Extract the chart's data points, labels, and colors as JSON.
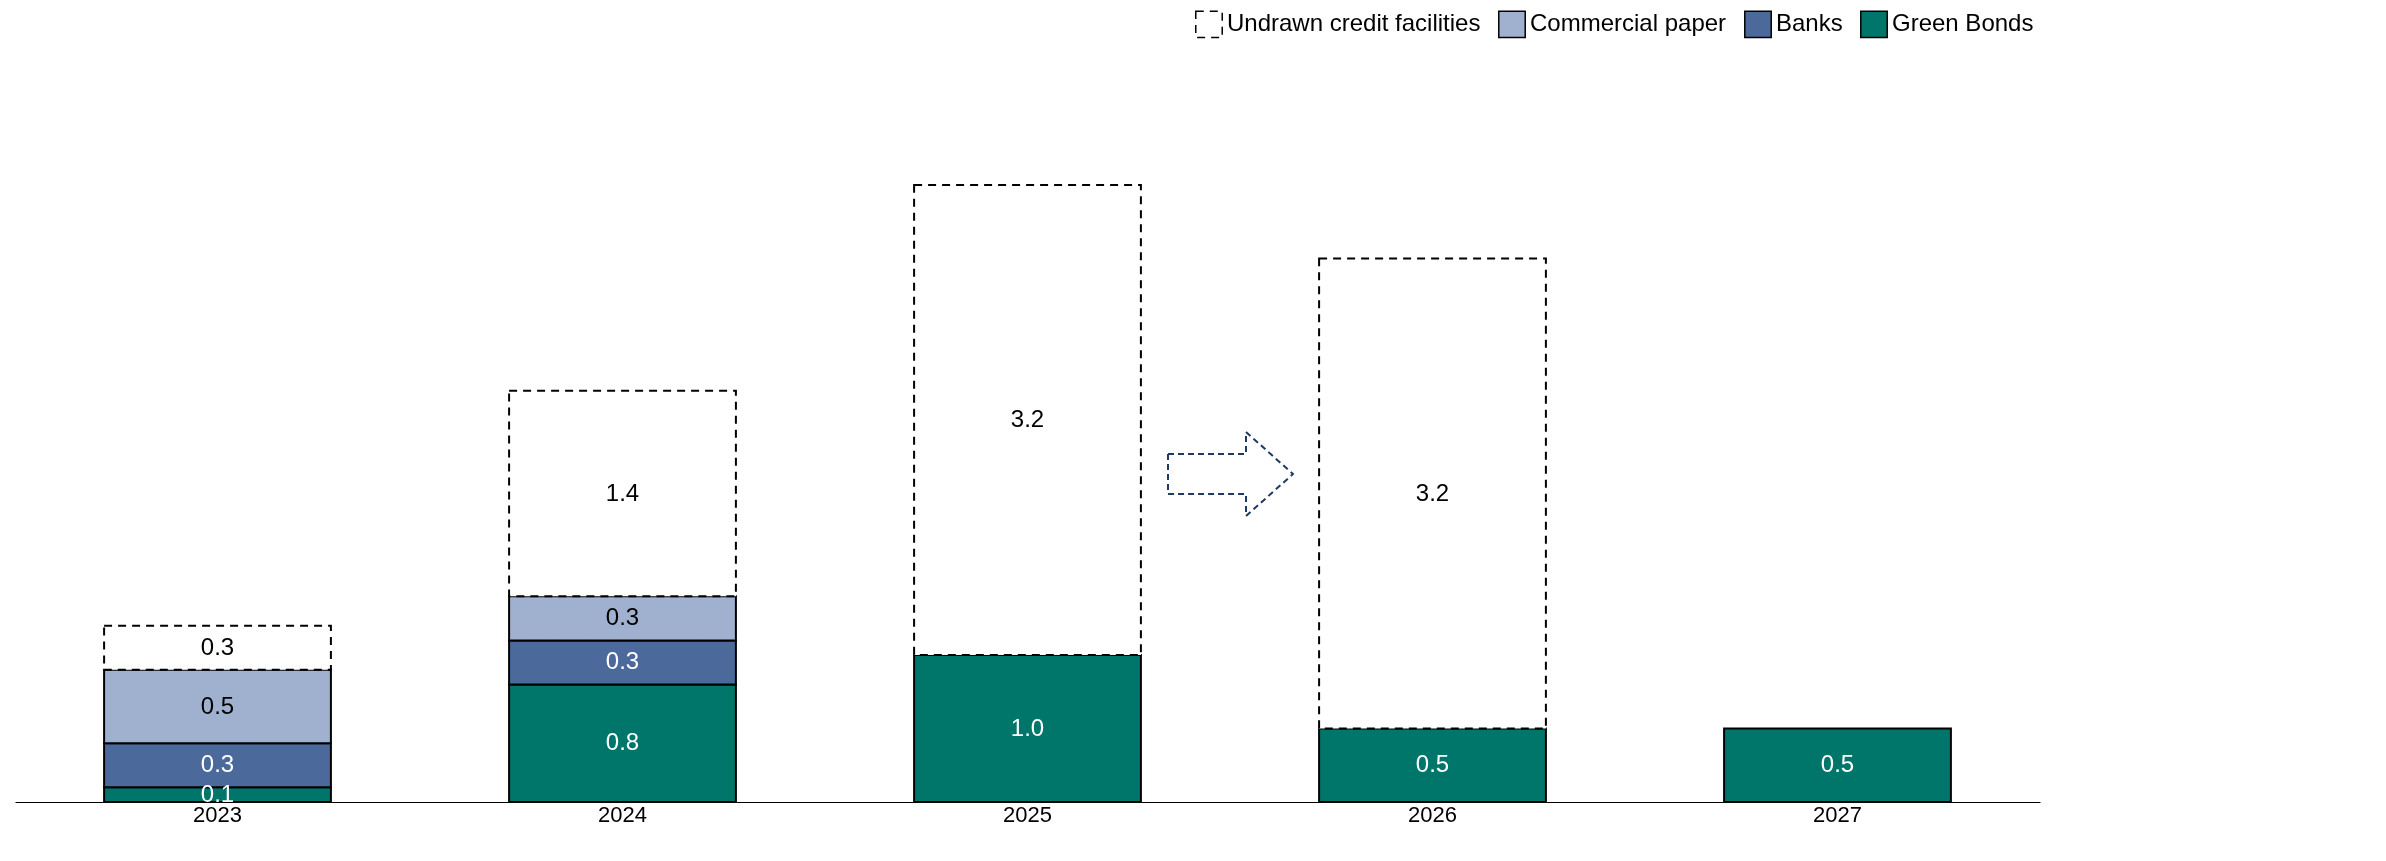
{
  "chart_data": {
    "type": "bar",
    "stacked": true,
    "legend": "top right",
    "grid": false,
    "categories": [
      "2023",
      "2024",
      "2025",
      "2026",
      "2027"
    ],
    "series": [
      {
        "name": "Green Bonds",
        "color": "#00766b",
        "values": [
          0.1,
          0.8,
          1.0,
          0.5,
          0.5
        ],
        "value_labels": [
          "0.1",
          "0.8",
          "1.0",
          "0.5",
          "0.5"
        ]
      },
      {
        "name": "Banks",
        "color": "#4b6a9b",
        "values": [
          0.3,
          0.3,
          null,
          null,
          null
        ],
        "value_labels": [
          "0.3",
          "0.3",
          null,
          null,
          null
        ]
      },
      {
        "name": "Commercial paper",
        "color": "#9fb1cf",
        "values": [
          0.5,
          0.3,
          null,
          null,
          null
        ],
        "value_labels": [
          "0.5",
          "0.3",
          null,
          null,
          null
        ]
      },
      {
        "name": "Undrawn credit facilities",
        "color": "#ffffff",
        "line_style": "dashed",
        "values": [
          0.3,
          1.4,
          3.2,
          3.2,
          null
        ],
        "value_labels": [
          "0.3",
          "1.4",
          "3.2",
          "3.2",
          null
        ]
      }
    ]
  }
}
